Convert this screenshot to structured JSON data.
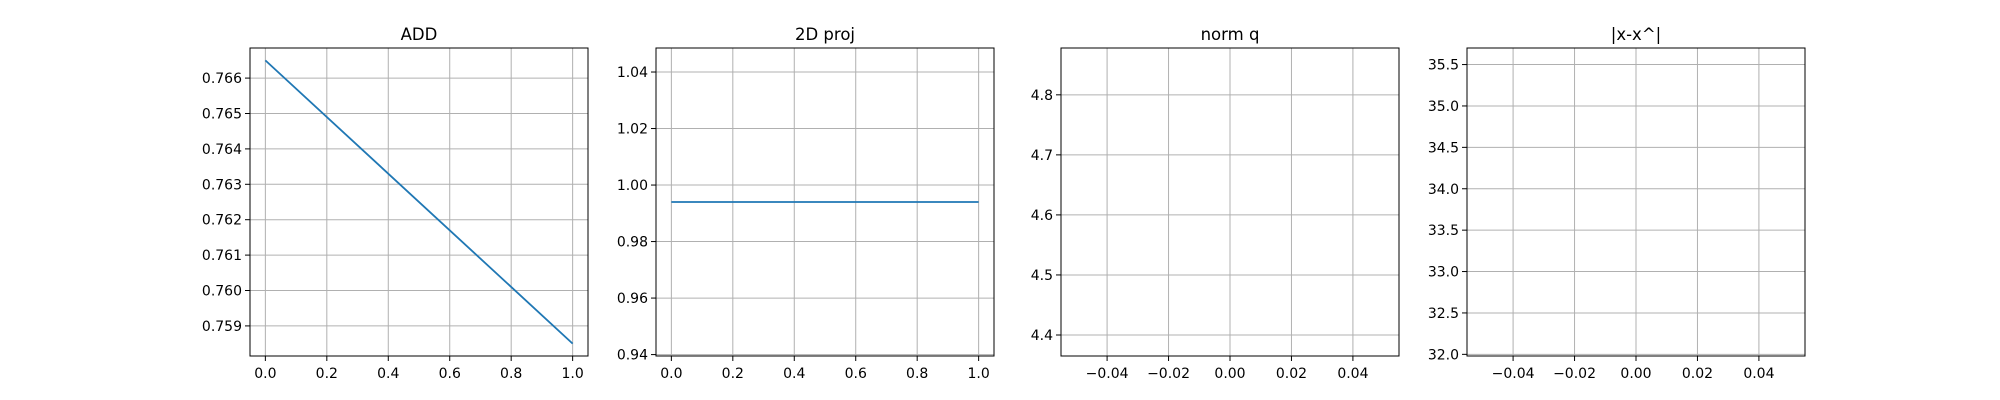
{
  "chart_data": [
    {
      "type": "line",
      "title": "ADD",
      "xlabel": "",
      "ylabel": "",
      "xlim": [
        -0.05,
        1.05
      ],
      "ylim": [
        0.75815,
        0.76685
      ],
      "xticks": [
        "0.0",
        "0.2",
        "0.4",
        "0.6",
        "0.8",
        "1.0"
      ],
      "yticks": [
        "0.759",
        "0.760",
        "0.761",
        "0.762",
        "0.763",
        "0.764",
        "0.765",
        "0.766"
      ],
      "grid": true,
      "series": [
        {
          "x": [
            0.0,
            1.0
          ],
          "y": [
            0.7665,
            0.7585
          ],
          "color": "#1f77b4"
        }
      ]
    },
    {
      "type": "line",
      "title": "2D proj",
      "xlabel": "",
      "ylabel": "",
      "xlim": [
        -0.05,
        1.05
      ],
      "ylim": [
        0.9395,
        1.0485
      ],
      "xticks": [
        "0.0",
        "0.2",
        "0.4",
        "0.6",
        "0.8",
        "1.0"
      ],
      "yticks": [
        "0.94",
        "0.96",
        "0.98",
        "1.00",
        "1.02",
        "1.04"
      ],
      "grid": true,
      "series": [
        {
          "x": [
            0.0,
            1.0
          ],
          "y": [
            0.994,
            0.994
          ],
          "color": "#1f77b4"
        }
      ]
    },
    {
      "type": "line",
      "title": "norm q",
      "xlabel": "",
      "ylabel": "",
      "xlim": [
        -0.055,
        0.055
      ],
      "ylim": [
        4.365,
        4.878
      ],
      "xticks": [
        "−0.04",
        "−0.02",
        "0.00",
        "0.02",
        "0.04"
      ],
      "yticks": [
        "4.4",
        "4.5",
        "4.6",
        "4.7",
        "4.8"
      ],
      "grid": true,
      "series": []
    },
    {
      "type": "line",
      "title": "|x-x^|",
      "xlabel": "",
      "ylabel": "",
      "xlim": [
        -0.055,
        0.055
      ],
      "ylim": [
        31.98,
        35.7
      ],
      "xticks": [
        "−0.04",
        "−0.02",
        "0.00",
        "0.02",
        "0.04"
      ],
      "yticks": [
        "32.0",
        "32.5",
        "33.0",
        "33.5",
        "34.0",
        "34.5",
        "35.0",
        "35.5"
      ],
      "grid": true,
      "series": []
    }
  ]
}
